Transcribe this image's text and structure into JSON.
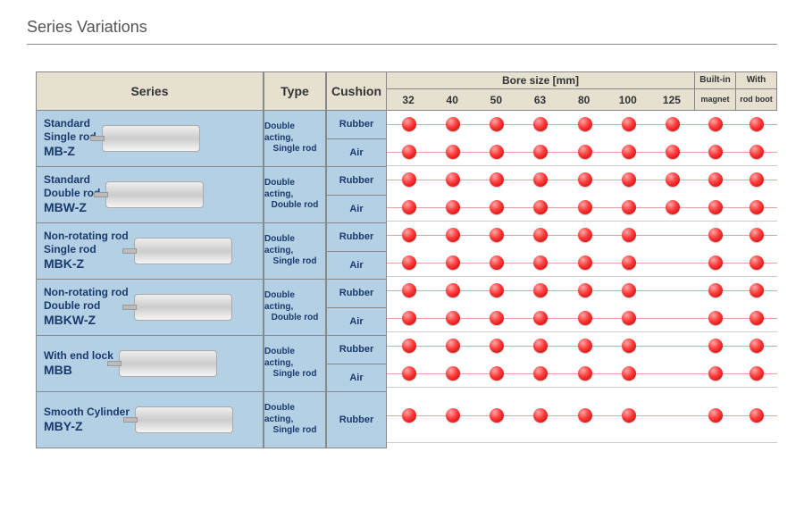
{
  "title": "Series Variations",
  "headers": {
    "series": "Series",
    "type": "Type",
    "cushion": "Cushion",
    "bore_title": "Bore size [mm]",
    "builtin_top": "Built-in",
    "withrod_top": "With",
    "builtin_bot": "magnet",
    "withrod_bot": "rod boot"
  },
  "bore_sizes": [
    "32",
    "40",
    "50",
    "63",
    "80",
    "100",
    "125"
  ],
  "colors": {
    "header_bg": "#e5e0cf",
    "cell_bg": "#b4d0e4",
    "text_blue": "#1a3a6e",
    "dot_red": "#ff3a3a",
    "dot_red_dark": "#b80000",
    "line_red": "#e2a3a3"
  },
  "rows": [
    {
      "line1": "Standard",
      "line2": "Single rod",
      "model": "MB-Z",
      "type1": "Double acting,",
      "type2": "Single rod",
      "cushions": [
        "Rubber",
        "Air"
      ],
      "dots": [
        {
          "bores": [
            1,
            1,
            1,
            1,
            1,
            1,
            1
          ],
          "builtin": 1,
          "rodboot": 1
        },
        {
          "bores": [
            1,
            1,
            1,
            1,
            1,
            1,
            1
          ],
          "builtin": 1,
          "rodboot": 1
        }
      ]
    },
    {
      "line1": "Standard",
      "line2": "Double rod",
      "model": "MBW-Z",
      "type1": "Double acting,",
      "type2": "Double rod",
      "cushions": [
        "Rubber",
        "Air"
      ],
      "dots": [
        {
          "bores": [
            1,
            1,
            1,
            1,
            1,
            1,
            1
          ],
          "builtin": 1,
          "rodboot": 1
        },
        {
          "bores": [
            1,
            1,
            1,
            1,
            1,
            1,
            1
          ],
          "builtin": 1,
          "rodboot": 1
        }
      ]
    },
    {
      "line1": "Non-rotating rod",
      "line2": "Single rod",
      "model": "MBK-Z",
      "type1": "Double acting,",
      "type2": "Single rod",
      "cushions": [
        "Rubber",
        "Air"
      ],
      "dots": [
        {
          "bores": [
            1,
            1,
            1,
            1,
            1,
            1,
            0
          ],
          "builtin": 1,
          "rodboot": 1
        },
        {
          "bores": [
            1,
            1,
            1,
            1,
            1,
            1,
            0
          ],
          "builtin": 1,
          "rodboot": 1
        }
      ]
    },
    {
      "line1": "Non-rotating rod",
      "line2": "Double rod",
      "model": "MBKW-Z",
      "type1": "Double acting,",
      "type2": "Double rod",
      "cushions": [
        "Rubber",
        "Air"
      ],
      "dots": [
        {
          "bores": [
            1,
            1,
            1,
            1,
            1,
            1,
            0
          ],
          "builtin": 1,
          "rodboot": 1
        },
        {
          "bores": [
            1,
            1,
            1,
            1,
            1,
            1,
            0
          ],
          "builtin": 1,
          "rodboot": 1
        }
      ]
    },
    {
      "line1": "With end lock",
      "line2": "",
      "model": "MBB",
      "type1": "Double acting,",
      "type2": "Single rod",
      "cushions": [
        "Rubber",
        "Air"
      ],
      "dots": [
        {
          "bores": [
            1,
            1,
            1,
            1,
            1,
            1,
            0
          ],
          "builtin": 1,
          "rodboot": 1
        },
        {
          "bores": [
            1,
            1,
            1,
            1,
            1,
            1,
            0
          ],
          "builtin": 1,
          "rodboot": 1
        }
      ]
    },
    {
      "line1": "Smooth Cylinder",
      "line2": "",
      "model": "MBY-Z",
      "type1": "Double acting,",
      "type2": "Single rod",
      "cushions": [
        "Rubber"
      ],
      "dots": [
        {
          "bores": [
            1,
            1,
            1,
            1,
            1,
            1,
            0
          ],
          "builtin": 1,
          "rodboot": 1
        }
      ]
    }
  ]
}
